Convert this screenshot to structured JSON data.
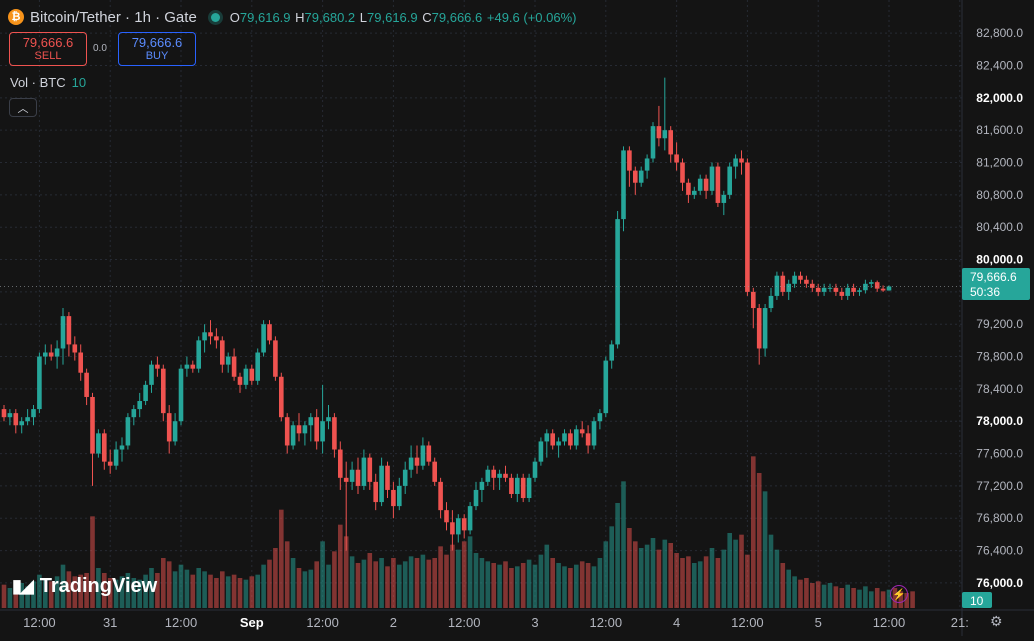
{
  "header": {
    "symbol": "Bitcoin/Tether",
    "interval": "1h",
    "exchange": "Gate",
    "coin_icon": "bitcoin-icon",
    "status_icon": "market-open-dot",
    "ohlc": [
      {
        "key": "O",
        "value": "79,616.9"
      },
      {
        "key": "H",
        "value": "79,680.2"
      },
      {
        "key": "L",
        "value": "79,616.9"
      },
      {
        "key": "C",
        "value": "79,666.6"
      }
    ],
    "change": "+49.6 (+0.06%)"
  },
  "trade": {
    "sell_price": "79,666.6",
    "sell_label": "SELL",
    "spread": "0.0",
    "buy_price": "79,666.6",
    "buy_label": "BUY"
  },
  "volume_legend": {
    "label": "Vol · BTC",
    "value": "10"
  },
  "collapse_icon": "chevron-up-icon",
  "branding": {
    "logo_text": "TradingView",
    "logo_mark": "TV"
  },
  "price_badge": {
    "price": "79,666.6",
    "countdown": "50:36"
  },
  "volume_badge": "10",
  "colors": {
    "up": "#26a69a",
    "down": "#ef5350",
    "background": "#141414",
    "accent": "#2962ff"
  },
  "chart_data": {
    "type": "candlestick",
    "interval": "1h",
    "y_axis": {
      "range": [
        75900,
        83000
      ],
      "ticks": [
        "82,800.0",
        "82,400.0",
        "82,000.0",
        "81,600.0",
        "81,200.0",
        "80,800.0",
        "80,400.0",
        "80,000.0",
        "79,600.0",
        "79,200.0",
        "78,800.0",
        "78,400.0",
        "78,000.0",
        "77,600.0",
        "77,200.0",
        "76,800.0",
        "76,400.0",
        "76,000.0"
      ],
      "bold_ticks": [
        "82,000.0",
        "80,000.0",
        "78,000.0",
        "76,000.0"
      ],
      "ticks_values": [
        82800,
        82400,
        82000,
        81600,
        81200,
        80800,
        80400,
        80000,
        79600,
        79200,
        78800,
        78400,
        78000,
        77600,
        77200,
        76800,
        76400,
        76000
      ]
    },
    "x_axis": {
      "tick_labels": [
        "12:00",
        "31",
        "12:00",
        "Sep",
        "12:00",
        "2",
        "12:00",
        "3",
        "12:00",
        "4",
        "12:00",
        "5",
        "12:00",
        "21:"
      ],
      "tick_index": [
        6,
        18,
        30,
        42,
        54,
        66,
        78,
        90,
        102,
        114,
        126,
        138,
        150,
        162
      ],
      "bold_ticks": [
        "Sep"
      ]
    },
    "candles": [
      [
        78150,
        78200,
        78000,
        78050
      ],
      [
        78050,
        78150,
        77950,
        78100
      ],
      [
        78100,
        78150,
        77850,
        77950
      ],
      [
        77950,
        78050,
        77850,
        78000
      ],
      [
        78000,
        78150,
        77950,
        78050
      ],
      [
        78050,
        78200,
        77950,
        78150
      ],
      [
        78150,
        78850,
        78100,
        78800
      ],
      [
        78800,
        78950,
        78700,
        78850
      ],
      [
        78850,
        78950,
        78750,
        78800
      ],
      [
        78800,
        79000,
        78650,
        78900
      ],
      [
        78900,
        79400,
        78700,
        79300
      ],
      [
        79300,
        79350,
        78800,
        78950
      ],
      [
        78950,
        79050,
        78750,
        78850
      ],
      [
        78850,
        78950,
        78500,
        78600
      ],
      [
        78600,
        78650,
        78200,
        78300
      ],
      [
        78300,
        78350,
        77200,
        77600
      ],
      [
        77600,
        77900,
        77550,
        77850
      ],
      [
        77850,
        77900,
        77400,
        77500
      ],
      [
        77500,
        77650,
        77350,
        77450
      ],
      [
        77450,
        77750,
        77400,
        77650
      ],
      [
        77650,
        77800,
        77500,
        77700
      ],
      [
        77700,
        78100,
        77650,
        78050
      ],
      [
        78050,
        78200,
        77950,
        78150
      ],
      [
        78150,
        78350,
        78050,
        78250
      ],
      [
        78250,
        78500,
        78200,
        78450
      ],
      [
        78450,
        78750,
        78350,
        78700
      ],
      [
        78700,
        78800,
        78550,
        78650
      ],
      [
        78650,
        78700,
        78000,
        78100
      ],
      [
        78100,
        78200,
        77600,
        77750
      ],
      [
        77750,
        78100,
        77700,
        78000
      ],
      [
        78000,
        78700,
        77950,
        78650
      ],
      [
        78650,
        78800,
        78550,
        78700
      ],
      [
        78700,
        78750,
        78600,
        78650
      ],
      [
        78650,
        79050,
        78600,
        79000
      ],
      [
        79000,
        79200,
        78850,
        79100
      ],
      [
        79100,
        79250,
        78950,
        79050
      ],
      [
        79050,
        79150,
        78900,
        79000
      ],
      [
        79000,
        79050,
        78600,
        78700
      ],
      [
        78700,
        78850,
        78600,
        78800
      ],
      [
        78800,
        78900,
        78500,
        78550
      ],
      [
        78550,
        78600,
        78350,
        78450
      ],
      [
        78450,
        78700,
        78400,
        78650
      ],
      [
        78650,
        78700,
        78450,
        78500
      ],
      [
        78500,
        78900,
        78450,
        78850
      ],
      [
        78850,
        79250,
        78800,
        79200
      ],
      [
        79200,
        79250,
        78950,
        79000
      ],
      [
        79000,
        79050,
        78500,
        78550
      ],
      [
        78550,
        78600,
        78000,
        78050
      ],
      [
        78050,
        78100,
        77600,
        77700
      ],
      [
        77700,
        78000,
        77650,
        77950
      ],
      [
        77950,
        78100,
        77750,
        77850
      ],
      [
        77850,
        78000,
        77700,
        77950
      ],
      [
        77950,
        78100,
        77750,
        78050
      ],
      [
        78050,
        78150,
        77650,
        77750
      ],
      [
        77750,
        78450,
        77600,
        78000
      ],
      [
        78000,
        78200,
        77900,
        78050
      ],
      [
        78050,
        78100,
        77550,
        77650
      ],
      [
        77650,
        77750,
        77150,
        77300
      ],
      [
        77300,
        77500,
        76400,
        77250
      ],
      [
        77250,
        77500,
        77150,
        77400
      ],
      [
        77400,
        77550,
        77100,
        77200
      ],
      [
        77200,
        77650,
        77150,
        77550
      ],
      [
        77550,
        77600,
        77150,
        77250
      ],
      [
        77250,
        77350,
        76900,
        77000
      ],
      [
        77000,
        77550,
        76950,
        77450
      ],
      [
        77450,
        77500,
        77050,
        77150
      ],
      [
        77150,
        77250,
        76800,
        76950
      ],
      [
        76950,
        77300,
        76900,
        77200
      ],
      [
        77200,
        77500,
        77100,
        77400
      ],
      [
        77400,
        77700,
        77300,
        77550
      ],
      [
        77550,
        77700,
        77350,
        77450
      ],
      [
        77450,
        77800,
        77400,
        77700
      ],
      [
        77700,
        77750,
        77450,
        77500
      ],
      [
        77500,
        77550,
        77200,
        77250
      ],
      [
        77250,
        77300,
        76800,
        76900
      ],
      [
        76900,
        77000,
        76650,
        76750
      ],
      [
        76750,
        76900,
        76400,
        76600
      ],
      [
        76600,
        76850,
        76500,
        76800
      ],
      [
        76800,
        76850,
        76550,
        76650
      ],
      [
        76650,
        77000,
        76600,
        76950
      ],
      [
        76950,
        77250,
        76900,
        77150
      ],
      [
        77150,
        77300,
        77000,
        77250
      ],
      [
        77250,
        77450,
        77200,
        77400
      ],
      [
        77400,
        77450,
        77150,
        77300
      ],
      [
        77300,
        77400,
        77150,
        77350
      ],
      [
        77350,
        77450,
        77250,
        77300
      ],
      [
        77300,
        77350,
        77050,
        77100
      ],
      [
        77100,
        77350,
        77000,
        77300
      ],
      [
        77300,
        77350,
        77000,
        77050
      ],
      [
        77050,
        77350,
        77000,
        77300
      ],
      [
        77300,
        77550,
        77250,
        77500
      ],
      [
        77500,
        77800,
        77450,
        77750
      ],
      [
        77750,
        77900,
        77550,
        77850
      ],
      [
        77850,
        77900,
        77650,
        77700
      ],
      [
        77700,
        77800,
        77550,
        77750
      ],
      [
        77750,
        77900,
        77700,
        77850
      ],
      [
        77850,
        77900,
        77650,
        77700
      ],
      [
        77700,
        77950,
        77650,
        77900
      ],
      [
        77900,
        78000,
        77800,
        77850
      ],
      [
        77850,
        77950,
        77600,
        77700
      ],
      [
        77700,
        78050,
        77650,
        78000
      ],
      [
        78000,
        78150,
        77900,
        78100
      ],
      [
        78100,
        78800,
        78050,
        78750
      ],
      [
        78750,
        79000,
        78650,
        78950
      ],
      [
        78950,
        80600,
        78900,
        80500
      ],
      [
        80500,
        81400,
        80350,
        81350
      ],
      [
        81350,
        81400,
        80900,
        81100
      ],
      [
        81100,
        81150,
        80800,
        80950
      ],
      [
        80950,
        81150,
        80900,
        81100
      ],
      [
        81100,
        81300,
        81000,
        81250
      ],
      [
        81250,
        81700,
        81200,
        81650
      ],
      [
        81650,
        81900,
        81400,
        81500
      ],
      [
        81500,
        82250,
        81350,
        81600
      ],
      [
        81600,
        81650,
        81200,
        81300
      ],
      [
        81300,
        81450,
        81100,
        81200
      ],
      [
        81200,
        81250,
        80850,
        80950
      ],
      [
        80950,
        81000,
        80700,
        80800
      ],
      [
        80800,
        80900,
        80750,
        80850
      ],
      [
        80850,
        81050,
        80800,
        81000
      ],
      [
        81000,
        81050,
        80750,
        80850
      ],
      [
        80850,
        81200,
        80800,
        81150
      ],
      [
        81150,
        81200,
        80650,
        80700
      ],
      [
        80700,
        80850,
        80550,
        80800
      ],
      [
        80800,
        81200,
        80750,
        81150
      ],
      [
        81150,
        81300,
        81000,
        81250
      ],
      [
        81250,
        81350,
        81050,
        81200
      ],
      [
        81200,
        81250,
        79550,
        79600
      ],
      [
        79600,
        79650,
        79150,
        79400
      ],
      [
        79400,
        79450,
        78700,
        78900
      ],
      [
        78900,
        79450,
        78800,
        79400
      ],
      [
        79400,
        79650,
        79350,
        79550
      ],
      [
        79550,
        79850,
        79500,
        79800
      ],
      [
        79800,
        79850,
        79550,
        79600
      ],
      [
        79600,
        79750,
        79500,
        79700
      ],
      [
        79700,
        79850,
        79650,
        79800
      ],
      [
        79800,
        79850,
        79700,
        79750
      ],
      [
        79750,
        79800,
        79650,
        79700
      ],
      [
        79700,
        79750,
        79600,
        79650
      ],
      [
        79650,
        79700,
        79550,
        79600
      ],
      [
        79600,
        79700,
        79550,
        79650
      ],
      [
        79650,
        79700,
        79600,
        79650
      ],
      [
        79650,
        79700,
        79550,
        79600
      ],
      [
        79600,
        79650,
        79500,
        79550
      ],
      [
        79550,
        79700,
        79500,
        79650
      ],
      [
        79650,
        79700,
        79550,
        79600
      ],
      [
        79600,
        79650,
        79550,
        79620
      ],
      [
        79620,
        79750,
        79580,
        79700
      ],
      [
        79700,
        79750,
        79650,
        79720
      ],
      [
        79720,
        79740,
        79600,
        79640
      ],
      [
        79640,
        79680,
        79600,
        79617
      ],
      [
        79617,
        79680,
        79616,
        79667
      ]
    ],
    "volumes": [
      1.4,
      1.2,
      1.3,
      1.5,
      1.3,
      1.6,
      2.0,
      1.8,
      1.6,
      1.9,
      2.6,
      2.2,
      1.9,
      2.0,
      2.1,
      5.5,
      2.4,
      2.1,
      1.8,
      1.7,
      1.9,
      2.1,
      1.8,
      1.7,
      2.0,
      2.4,
      2.1,
      3.0,
      2.8,
      2.2,
      2.6,
      2.3,
      2.0,
      2.4,
      2.2,
      2.0,
      1.8,
      2.2,
      1.9,
      2.0,
      1.8,
      1.7,
      1.9,
      2.0,
      2.6,
      2.9,
      3.6,
      5.9,
      4.0,
      3.0,
      2.4,
      2.2,
      2.3,
      2.8,
      4.0,
      2.6,
      3.4,
      5.0,
      4.3,
      3.1,
      2.7,
      2.9,
      3.3,
      2.8,
      3.0,
      2.5,
      3.0,
      2.6,
      2.8,
      3.1,
      3.0,
      3.2,
      2.9,
      3.0,
      3.7,
      3.2,
      3.8,
      3.5,
      4.0,
      4.3,
      3.3,
      3.0,
      2.8,
      2.7,
      2.6,
      2.8,
      2.4,
      2.5,
      2.7,
      2.9,
      2.6,
      3.2,
      3.8,
      3.0,
      2.7,
      2.5,
      2.4,
      2.6,
      2.8,
      2.7,
      2.5,
      3.0,
      4.0,
      4.9,
      6.3,
      7.6,
      4.8,
      4.0,
      3.6,
      3.8,
      4.2,
      3.5,
      4.1,
      3.9,
      3.3,
      3.0,
      3.1,
      2.7,
      2.8,
      3.1,
      3.6,
      3.0,
      3.5,
      4.5,
      4.1,
      4.4,
      3.2,
      9.1,
      8.1,
      7.0,
      4.4,
      3.5,
      2.7,
      2.3,
      1.9,
      1.7,
      1.8,
      1.5,
      1.6,
      1.4,
      1.5,
      1.3,
      1.2,
      1.4,
      1.2,
      1.1,
      1.3,
      1.0,
      1.2,
      1.0,
      1.1,
      1.2,
      1.0,
      0.9,
      1.0
    ]
  }
}
